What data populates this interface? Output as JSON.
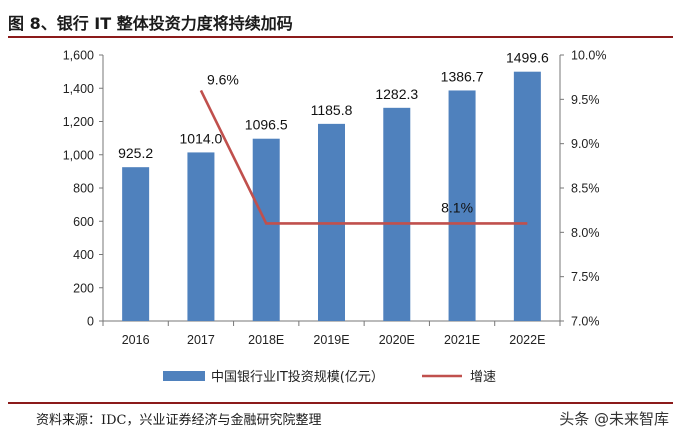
{
  "header": {
    "title": "图 8、银行 IT 整体投资力度将持续加码"
  },
  "footer": {
    "source": "资料来源：IDC，兴业证券经济与金融研究院整理",
    "watermark": "头条 @未来智库"
  },
  "colors": {
    "bar": "#4f81bd",
    "line": "#c0504d",
    "accent": "#8b1a1a"
  },
  "chart_data": {
    "type": "bar",
    "categories": [
      "2016",
      "2017",
      "2018E",
      "2019E",
      "2020E",
      "2021E",
      "2022E"
    ],
    "series": [
      {
        "name": "中国银行业IT投资规模(亿元）",
        "type": "bar",
        "axis": "left",
        "values": [
          925.2,
          1014.0,
          1096.5,
          1185.8,
          1282.3,
          1386.7,
          1499.6
        ],
        "labels": [
          "925.2",
          "1014.0",
          "1096.5",
          "1185.8",
          "1282.3",
          "1386.7",
          "1499.6"
        ]
      },
      {
        "name": "增速",
        "type": "line",
        "axis": "right",
        "values": [
          null,
          9.6,
          8.1,
          8.1,
          8.1,
          8.1,
          8.1
        ],
        "labels": {
          "1": "9.6%",
          "5": "8.1%"
        }
      }
    ],
    "y_left": {
      "ylim": [
        0,
        1600
      ],
      "ticks": [
        "0",
        "200",
        "400",
        "600",
        "800",
        "1,000",
        "1,200",
        "1,400",
        "1,600"
      ]
    },
    "y_right": {
      "ylim": [
        7.0,
        10.0
      ],
      "ticks": [
        "7.0%",
        "7.5%",
        "8.0%",
        "8.5%",
        "9.0%",
        "9.5%",
        "10.0%"
      ]
    },
    "legend_position": "bottom",
    "grid": false
  }
}
